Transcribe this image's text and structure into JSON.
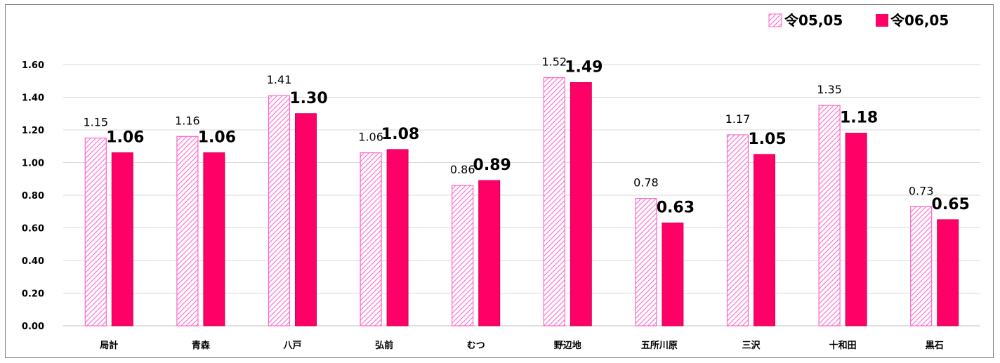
{
  "chart_data": {
    "type": "bar",
    "categories": [
      "局計",
      "青森",
      "八戸",
      "弘前",
      "むつ",
      "野辺地",
      "五所川原",
      "三沢",
      "十和田",
      "黒石"
    ],
    "series": [
      {
        "name": "令05,05",
        "values": [
          1.15,
          1.16,
          1.41,
          1.06,
          0.86,
          1.52,
          0.78,
          1.17,
          1.35,
          0.73
        ],
        "labels": [
          "1.15",
          "1.16",
          "1.41",
          "1.06",
          "0.86",
          "1.52",
          "0.78",
          "1.17",
          "1.35",
          "0.73"
        ],
        "style": "hatched",
        "color": "#ff66cc"
      },
      {
        "name": "令06,05",
        "values": [
          1.06,
          1.06,
          1.3,
          1.08,
          0.89,
          1.49,
          0.63,
          1.05,
          1.18,
          0.65
        ],
        "labels": [
          "1.06",
          "1.06",
          "1.30",
          "1.08",
          "0.89",
          "1.49",
          "0.63",
          "1.05",
          "1.18",
          "0.65"
        ],
        "style": "solid",
        "color": "#ff0066"
      }
    ],
    "y_ticks": [
      "0.00",
      "0.20",
      "0.40",
      "0.60",
      "0.80",
      "1.00",
      "1.20",
      "1.40",
      "1.60"
    ],
    "ylim": [
      0,
      1.6
    ],
    "grid": true,
    "legend_position": "top-right",
    "title": "",
    "xlabel": "",
    "ylabel": ""
  }
}
